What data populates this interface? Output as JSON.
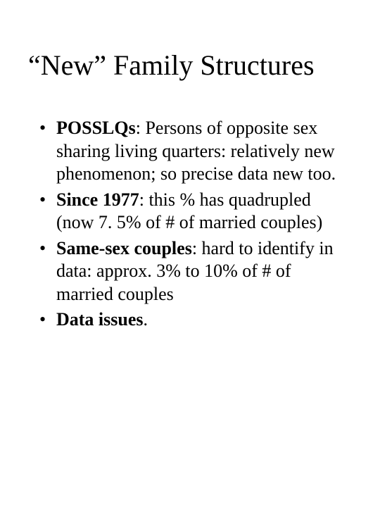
{
  "title": "“New” Family Structures",
  "bullets": [
    {
      "lead": "POSSLQs",
      "rest": ": Persons of opposite sex sharing living quarters: relatively new phenomenon; so precise data new too."
    },
    {
      "lead": "Since 1977",
      "rest": ": this % has quadrupled (now 7. 5% of  # of married couples)"
    },
    {
      "lead": "Same-sex couples",
      "rest": ": hard to identify in data: approx. 3% to 10% of # of married couples"
    },
    {
      "lead": "Data issues",
      "rest": "."
    }
  ],
  "style": {
    "background_color": "#ffffff",
    "text_color": "#000000",
    "title_fontsize": 40,
    "body_fontsize": 26,
    "font_family": "Times New Roman"
  }
}
